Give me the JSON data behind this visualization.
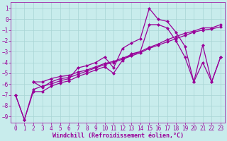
{
  "xlabel": "Windchill (Refroidissement éolien,°C)",
  "bg_color": "#c8ecec",
  "grid_color": "#a8d4d4",
  "line_color": "#990099",
  "xlim": [
    -0.5,
    23.5
  ],
  "ylim": [
    -9.6,
    1.6
  ],
  "yticks": [
    1,
    0,
    -1,
    -2,
    -3,
    -4,
    -5,
    -6,
    -7,
    -8,
    -9
  ],
  "xticks": [
    0,
    1,
    2,
    3,
    4,
    5,
    6,
    7,
    8,
    9,
    10,
    11,
    12,
    13,
    14,
    15,
    16,
    17,
    18,
    19,
    20,
    21,
    22,
    23
  ],
  "line1_x": [
    0,
    1,
    2,
    3,
    4,
    5,
    6,
    7,
    8,
    9,
    10,
    11,
    12,
    13,
    14,
    15,
    16,
    17,
    18,
    19,
    20,
    21,
    22,
    23
  ],
  "line1_y": [
    -7.0,
    -9.3,
    -6.5,
    -6.2,
    -6.0,
    -5.7,
    -5.5,
    -4.5,
    -4.3,
    -4.0,
    -3.5,
    -4.5,
    -2.7,
    -2.2,
    -1.8,
    1.0,
    0.0,
    -0.2,
    -1.2,
    -2.5,
    -5.8,
    -2.4,
    -5.8,
    -3.5
  ],
  "line2_x": [
    0,
    1,
    2,
    3,
    4,
    5,
    6,
    7,
    8,
    9,
    10,
    11,
    12,
    13,
    14,
    15,
    16,
    17,
    18,
    19,
    20,
    21,
    22,
    23
  ],
  "line2_y": [
    -7.0,
    -9.3,
    -6.7,
    -6.7,
    -6.2,
    -5.9,
    -5.7,
    -5.3,
    -5.0,
    -4.7,
    -4.4,
    -5.0,
    -3.8,
    -3.2,
    -3.0,
    -0.5,
    -0.5,
    -0.8,
    -2.0,
    -3.5,
    -5.8,
    -4.0,
    -5.8,
    -3.5
  ],
  "line3_x": [
    2,
    3,
    4,
    5,
    6,
    7,
    8,
    9,
    10,
    11,
    12,
    13,
    14,
    15,
    16,
    17,
    18,
    19,
    20,
    21,
    22,
    23
  ],
  "line3_y": [
    -5.8,
    -5.8,
    -5.5,
    -5.3,
    -5.2,
    -4.9,
    -4.7,
    -4.4,
    -4.1,
    -3.9,
    -3.6,
    -3.3,
    -3.0,
    -2.6,
    -2.3,
    -1.9,
    -1.6,
    -1.3,
    -1.1,
    -0.8,
    -0.8,
    -0.5
  ],
  "line4_x": [
    2,
    3,
    4,
    5,
    6,
    7,
    8,
    9,
    10,
    11,
    12,
    13,
    14,
    15,
    16,
    17,
    18,
    19,
    20,
    21,
    22,
    23
  ],
  "line4_y": [
    -5.8,
    -6.3,
    -5.8,
    -5.5,
    -5.4,
    -5.1,
    -4.8,
    -4.5,
    -4.2,
    -4.0,
    -3.7,
    -3.4,
    -3.1,
    -2.7,
    -2.4,
    -2.1,
    -1.8,
    -1.5,
    -1.2,
    -1.0,
    -0.9,
    -0.7
  ],
  "tick_fontsize": 5.5,
  "xlabel_fontsize": 6.0,
  "marker_size": 2.5,
  "line_width": 0.9
}
